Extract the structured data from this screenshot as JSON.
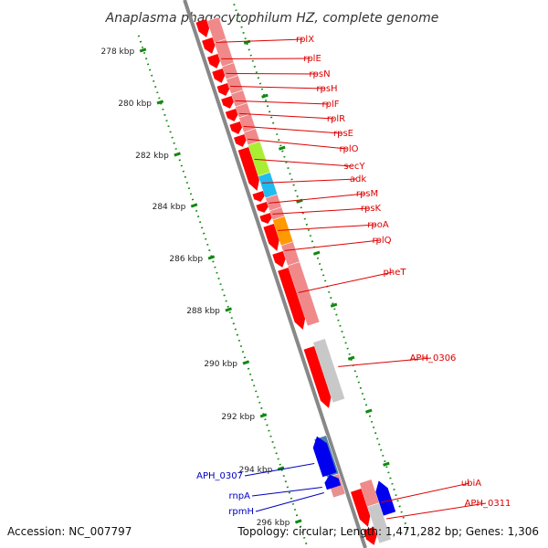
{
  "title": "Anaplasma phagocytophilum HZ, complete genome",
  "accession": "Accession: NC_007797",
  "topology": "Topology: circular; Length: 1,471,282 bp; Genes: 1,306",
  "colors": {
    "forward_label": "#dd0000",
    "reverse_label": "#0000bb",
    "forward_arrow": "#ff0000",
    "reverse_arrow": "#0000ee",
    "cds_forward": "#f08a8a",
    "cds_reverse": "#e89090",
    "cds_gray": "#c8c8c8",
    "rnpA_box": "#4b7fb0",
    "secY_box": "#aaee33",
    "adk_box": "#22bbee",
    "rpoA_box": "#ff9900",
    "backbone": "#888888",
    "tick_mark": "#118811"
  },
  "ticks": [
    "278 kbp",
    "280 kbp",
    "282 kbp",
    "284 kbp",
    "286 kbp",
    "288 kbp",
    "290 kbp",
    "292 kbp",
    "294 kbp",
    "296 kbp"
  ],
  "labels": [
    {
      "text": "rplX",
      "strand": "forward"
    },
    {
      "text": "rplE",
      "strand": "forward"
    },
    {
      "text": "rpsN",
      "strand": "forward"
    },
    {
      "text": "rpsH",
      "strand": "forward"
    },
    {
      "text": "rplF",
      "strand": "forward"
    },
    {
      "text": "rplR",
      "strand": "forward"
    },
    {
      "text": "rpsE",
      "strand": "forward"
    },
    {
      "text": "rplO",
      "strand": "forward"
    },
    {
      "text": "secY",
      "strand": "forward"
    },
    {
      "text": "adk",
      "strand": "forward"
    },
    {
      "text": "rpsM",
      "strand": "forward"
    },
    {
      "text": "rpsK",
      "strand": "forward"
    },
    {
      "text": "rpoA",
      "strand": "forward"
    },
    {
      "text": "rplQ",
      "strand": "forward"
    },
    {
      "text": "pheT",
      "strand": "forward"
    },
    {
      "text": "APH_0306",
      "strand": "forward"
    },
    {
      "text": "APH_0307",
      "strand": "reverse"
    },
    {
      "text": "rnpA",
      "strand": "reverse"
    },
    {
      "text": "rpmH",
      "strand": "reverse"
    },
    {
      "text": "ubiA",
      "strand": "forward"
    },
    {
      "text": "APH_0311",
      "strand": "forward"
    }
  ]
}
